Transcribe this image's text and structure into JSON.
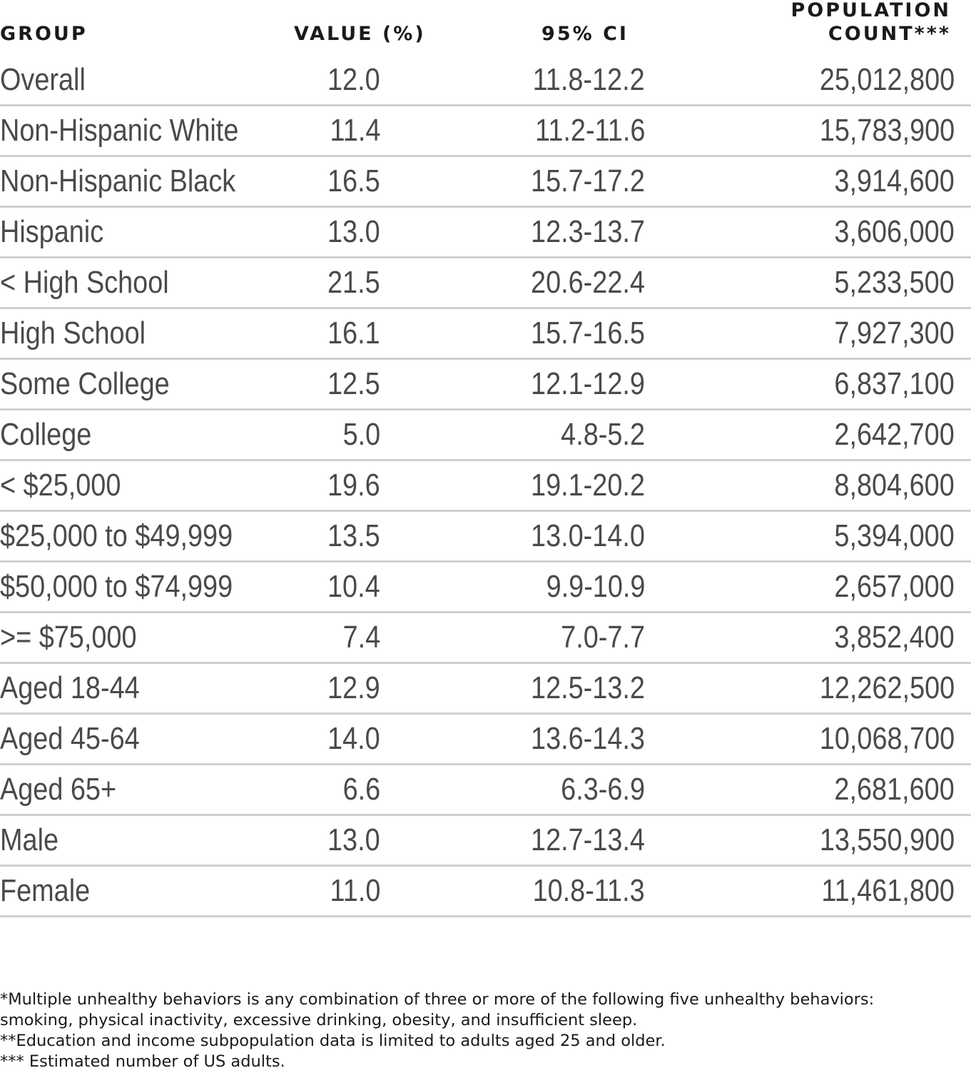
{
  "headers": {
    "group": "GROUP",
    "value": "VALUE (%)",
    "ci": "95% CI",
    "population_line1": "POPULATION",
    "population_line2": "COUNT***"
  },
  "rows": [
    {
      "group": "Overall",
      "value": "12.0",
      "ci": "11.8-12.2",
      "population": "25,012,800"
    },
    {
      "group": "Non-Hispanic White",
      "value": "11.4",
      "ci": "11.2-11.6",
      "population": "15,783,900"
    },
    {
      "group": "Non-Hispanic Black",
      "value": "16.5",
      "ci": "15.7-17.2",
      "population": "3,914,600"
    },
    {
      "group": "Hispanic",
      "value": "13.0",
      "ci": "12.3-13.7",
      "population": "3,606,000"
    },
    {
      "group": "< High School",
      "value": "21.5",
      "ci": "20.6-22.4",
      "population": "5,233,500"
    },
    {
      "group": "High School",
      "value": "16.1",
      "ci": "15.7-16.5",
      "population": "7,927,300"
    },
    {
      "group": "Some College",
      "value": "12.5",
      "ci": "12.1-12.9",
      "population": "6,837,100"
    },
    {
      "group": "College",
      "value": "5.0",
      "ci": "4.8-5.2",
      "population": "2,642,700"
    },
    {
      "group": "< $25,000",
      "value": "19.6",
      "ci": "19.1-20.2",
      "population": "8,804,600"
    },
    {
      "group": "$25,000 to $49,999",
      "value": "13.5",
      "ci": "13.0-14.0",
      "population": "5,394,000"
    },
    {
      "group": "$50,000 to $74,999",
      "value": "10.4",
      "ci": "9.9-10.9",
      "population": "2,657,000"
    },
    {
      "group": ">= $75,000",
      "value": "7.4",
      "ci": "7.0-7.7",
      "population": "3,852,400"
    },
    {
      "group": "Aged 18-44",
      "value": "12.9",
      "ci": "12.5-13.2",
      "population": "12,262,500"
    },
    {
      "group": "Aged 45-64",
      "value": "14.0",
      "ci": "13.6-14.3",
      "population": "10,068,700"
    },
    {
      "group": "Aged 65+",
      "value": "6.6",
      "ci": "6.3-6.9",
      "population": "2,681,600"
    },
    {
      "group": "Male",
      "value": "13.0",
      "ci": "12.7-13.4",
      "population": "13,550,900"
    },
    {
      "group": "Female",
      "value": "11.0",
      "ci": "10.8-11.3",
      "population": "11,461,800"
    }
  ],
  "footnotes": [
    "*Multiple unhealthy behaviors is any combination of three or more of the following five unhealthy behaviors:",
    "smoking, physical inactivity, excessive drinking, obesity, and insufficient sleep.",
    "**Education and income subpopulation data is limited to adults aged 25 and older.",
    "*** Estimated number of US adults."
  ]
}
